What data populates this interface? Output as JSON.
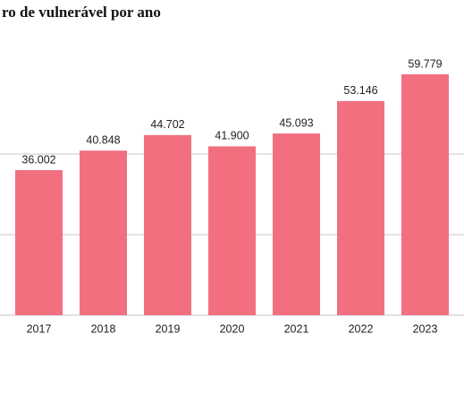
{
  "chart_data": {
    "type": "bar",
    "title": "ro de vulnerável por ano",
    "categories": [
      "2017",
      "2018",
      "2019",
      "2020",
      "2021",
      "2022",
      "2023"
    ],
    "values": [
      36002,
      40848,
      44702,
      41900,
      45093,
      53146,
      59779
    ],
    "value_labels": [
      "36.002",
      "40.848",
      "44.702",
      "41.900",
      "45.093",
      "53.146",
      "59.779"
    ],
    "color": "#f26f80",
    "ylim": [
      0,
      70000
    ],
    "yticks": [
      0,
      20000,
      40000
    ],
    "grid": true
  }
}
